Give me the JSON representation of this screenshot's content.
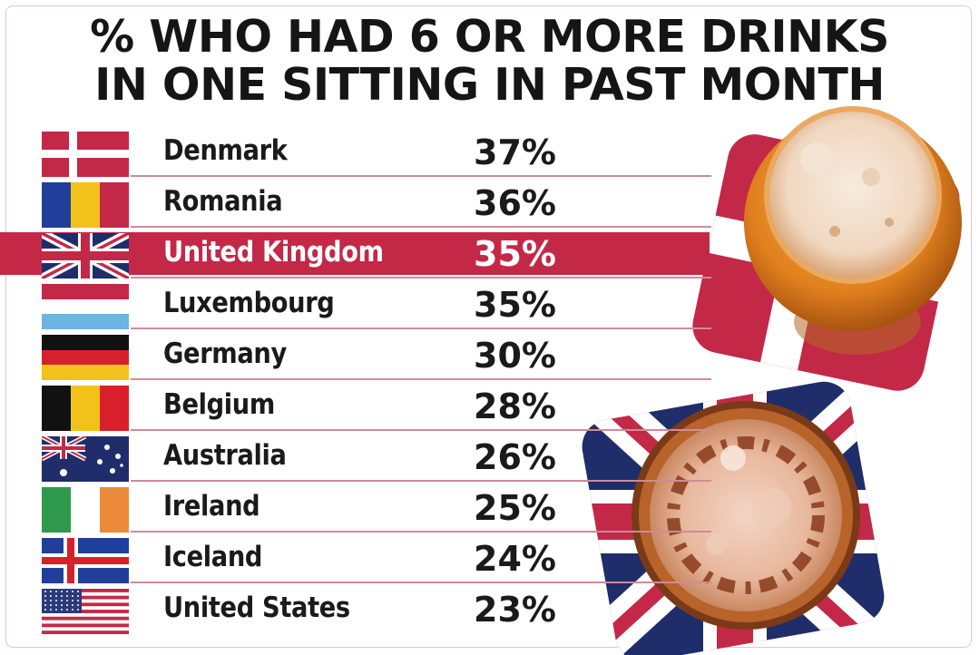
{
  "chart_data": {
    "type": "table",
    "title_lines": [
      "% WHO HAD 6 OR MORE DRINKS",
      "IN ONE SITTING IN PAST MONTH"
    ],
    "highlight_color": "#c42847",
    "highlighted_category": "United Kingdom",
    "rows": [
      {
        "country": "Denmark",
        "value": 37,
        "label": "37%",
        "flag": "denmark-flag"
      },
      {
        "country": "Romania",
        "value": 36,
        "label": "36%",
        "flag": "romania-flag"
      },
      {
        "country": "United Kingdom",
        "value": 35,
        "label": "35%",
        "flag": "uk-flag"
      },
      {
        "country": "Luxembourg",
        "value": 35,
        "label": "35%",
        "flag": "luxembourg-flag"
      },
      {
        "country": "Germany",
        "value": 30,
        "label": "30%",
        "flag": "germany-flag"
      },
      {
        "country": "Belgium",
        "value": 28,
        "label": "28%",
        "flag": "belgium-flag"
      },
      {
        "country": "Australia",
        "value": 26,
        "label": "26%",
        "flag": "australia-flag"
      },
      {
        "country": "Ireland",
        "value": 25,
        "label": "25%",
        "flag": "ireland-flag"
      },
      {
        "country": "Iceland",
        "value": 24,
        "label": "24%",
        "flag": "iceland-flag"
      },
      {
        "country": "United States",
        "value": 23,
        "label": "23%",
        "flag": "usa-flag"
      }
    ]
  }
}
